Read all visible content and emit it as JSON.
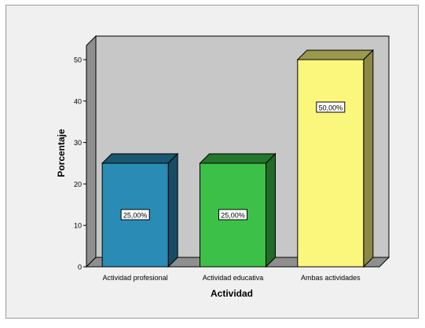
{
  "chart_data": {
    "type": "bar",
    "categories": [
      "Actividad profesional",
      "Actividad educativa",
      "Ambas actividades"
    ],
    "values": [
      25,
      25,
      50
    ],
    "data_labels": [
      "25,00%",
      "25,00%",
      "50,00%"
    ],
    "colors": [
      "#2a8cb5",
      "#3cc048",
      "#faf77c"
    ],
    "xlabel": "Actividad",
    "ylabel": "Porcentaje",
    "ylim": [
      0,
      50
    ],
    "yticks": [
      0,
      10,
      20,
      30,
      40,
      50
    ],
    "grid": false,
    "legend": "none",
    "style": "3d-bar"
  }
}
